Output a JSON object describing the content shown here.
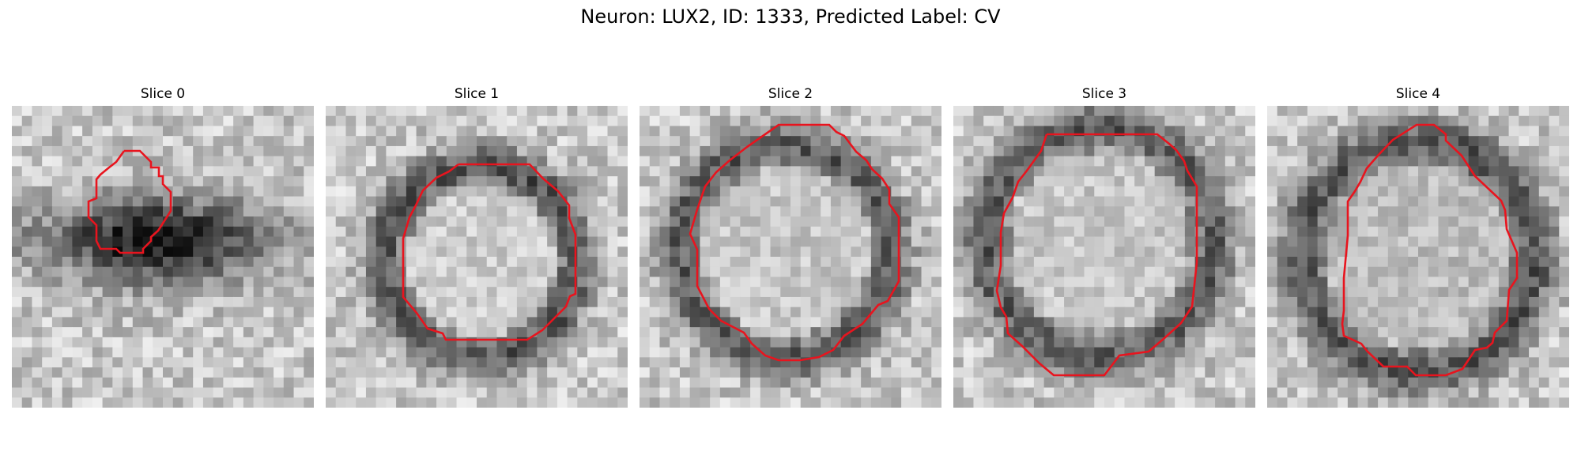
{
  "figure": {
    "title": "Neuron: LUX2, ID: 1333, Predicted Label: CV",
    "contour_color": "#e8141e"
  },
  "panels": [
    {
      "title": "Slice 0"
    },
    {
      "title": "Slice 1"
    },
    {
      "title": "Slice 2"
    },
    {
      "title": "Slice 3"
    },
    {
      "title": "Slice 4"
    }
  ]
}
